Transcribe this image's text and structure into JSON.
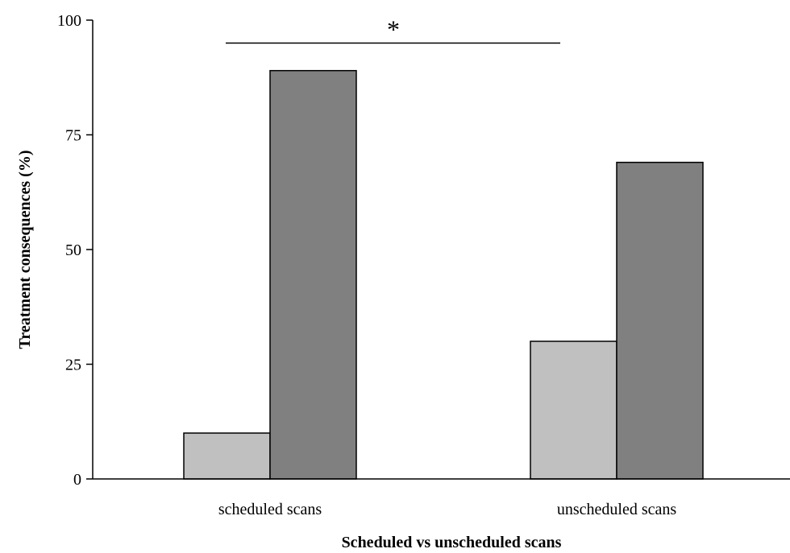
{
  "chart_data": {
    "type": "bar",
    "title": "",
    "xlabel": "Scheduled vs unscheduled scans",
    "ylabel": "Treatment consequences (%)",
    "ylim": [
      0,
      100
    ],
    "yticks": [
      0,
      25,
      50,
      75,
      100
    ],
    "grid": false,
    "legend": "none",
    "categories": [
      "scheduled scans",
      "unscheduled scans"
    ],
    "series": [
      {
        "color": "#c0c0c0",
        "values": [
          10,
          30
        ]
      },
      {
        "color": "#808080",
        "values": [
          89,
          69
        ]
      }
    ],
    "annotations": [
      {
        "text": "*",
        "type": "significance-bracket",
        "between": [
          "scheduled scans",
          "unscheduled scans"
        ],
        "y": 95
      }
    ]
  }
}
